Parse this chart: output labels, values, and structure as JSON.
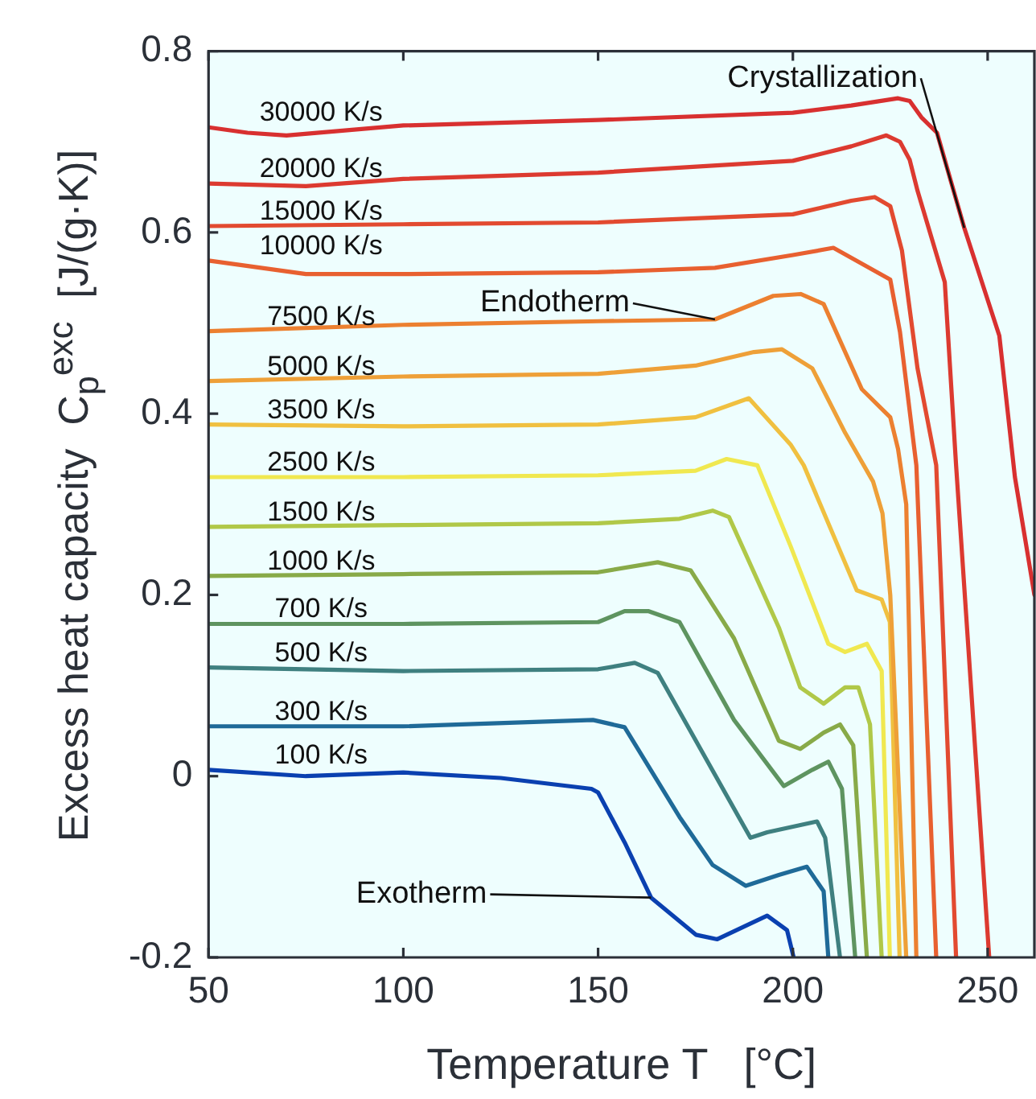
{
  "chart_data": {
    "type": "line",
    "xlabel": "Temperature T   [°C]",
    "ylabel": "Excess heat capacity  C$_{p}$$^{exc}$  [J/(g·K)]",
    "xlim": [
      50,
      262
    ],
    "ylim": [
      -0.2,
      0.8
    ],
    "xticks": [
      50,
      100,
      150,
      200,
      250
    ],
    "yticks": [
      -0.2,
      0,
      0.2,
      0.4,
      0.6,
      0.8
    ],
    "legend": false,
    "marker": "none",
    "line_style": "solid",
    "annotations": [
      {
        "text": "Crystallization",
        "x": 244,
        "y": 0.605
      },
      {
        "text": "Endotherm",
        "x": 180,
        "y": 0.504
      },
      {
        "text": "Exotherm",
        "x": 163.6,
        "y": -0.134
      }
    ],
    "series": [
      {
        "name": "30000 K/s",
        "color": "#d83030",
        "x": [
          50,
          60,
          70,
          100,
          150,
          200,
          215,
          227,
          230,
          233,
          237,
          244,
          253,
          257,
          262
        ],
        "values": [
          0.716,
          0.71,
          0.707,
          0.718,
          0.724,
          0.732,
          0.74,
          0.748,
          0.745,
          0.727,
          0.71,
          0.605,
          0.486,
          0.33,
          0.2
        ]
      },
      {
        "name": "20000 K/s",
        "color": "#dc3a30",
        "x": [
          50,
          75,
          100,
          150,
          200,
          215,
          224,
          227.5,
          230,
          232,
          239,
          241.9,
          250.4
        ],
        "values": [
          0.654,
          0.651,
          0.659,
          0.666,
          0.679,
          0.695,
          0.707,
          0.7,
          0.68,
          0.646,
          0.545,
          0.343,
          -0.2
        ]
      },
      {
        "name": "15000 K/s",
        "color": "#e24a30",
        "x": [
          50,
          100,
          150,
          200,
          215,
          221,
          225,
          228,
          232,
          236.8,
          241.9
        ],
        "values": [
          0.607,
          0.609,
          0.611,
          0.62,
          0.635,
          0.639,
          0.629,
          0.58,
          0.45,
          0.343,
          -0.2
        ]
      },
      {
        "name": "10000 K/s",
        "color": "#e86030",
        "x": [
          50,
          75,
          100,
          150,
          180,
          200,
          210.4,
          225,
          227.5,
          229.5,
          231.7,
          236.8
        ],
        "values": [
          0.569,
          0.554,
          0.554,
          0.556,
          0.561,
          0.575,
          0.583,
          0.548,
          0.49,
          0.42,
          0.343,
          -0.2
        ]
      },
      {
        "name": "7500 K/s",
        "color": "#ec8030",
        "x": [
          50,
          100,
          150,
          180,
          195,
          202,
          207.9,
          217.7,
          225,
          227,
          229.1,
          231.7
        ],
        "values": [
          0.491,
          0.498,
          0.502,
          0.504,
          0.53,
          0.532,
          0.521,
          0.427,
          0.396,
          0.361,
          0.3,
          -0.2
        ]
      },
      {
        "name": "5000 K/s",
        "color": "#eea038",
        "x": [
          50,
          100,
          150,
          175,
          190,
          197.2,
          205,
          213.4,
          220.6,
          223,
          225,
          229.1
        ],
        "values": [
          0.436,
          0.441,
          0.444,
          0.453,
          0.468,
          0.471,
          0.45,
          0.379,
          0.325,
          0.29,
          0.2,
          -0.2
        ]
      },
      {
        "name": "3500 K/s",
        "color": "#f0c040",
        "x": [
          50,
          100,
          150,
          175,
          188.7,
          199.4,
          202.8,
          216.4,
          222.8,
          224.9,
          227.4
        ],
        "values": [
          0.388,
          0.386,
          0.388,
          0.396,
          0.417,
          0.366,
          0.343,
          0.205,
          0.195,
          0.17,
          -0.2
        ]
      },
      {
        "name": "2500 K/s",
        "color": "#f0e850",
        "x": [
          50,
          100,
          150,
          175,
          183,
          190.9,
          199.4,
          209.1,
          213.4,
          219,
          222.8,
          224.9
        ],
        "values": [
          0.33,
          0.33,
          0.332,
          0.337,
          0.35,
          0.343,
          0.254,
          0.146,
          0.137,
          0.146,
          0.116,
          -0.2
        ]
      },
      {
        "name": "1500 K/s",
        "color": "#b0c848",
        "x": [
          50,
          100,
          150,
          170.9,
          179.4,
          183.6,
          196.4,
          201.9,
          207.9,
          213.4,
          216.8,
          219.8,
          222.8
        ],
        "values": [
          0.275,
          0.277,
          0.279,
          0.284,
          0.293,
          0.286,
          0.164,
          0.098,
          0.08,
          0.098,
          0.098,
          0.057,
          -0.2
        ]
      },
      {
        "name": "1000 K/s",
        "color": "#88aa48",
        "x": [
          50,
          100,
          150,
          165.3,
          173.8,
          184.9,
          196.4,
          201.9,
          207.9,
          212.1,
          215.5,
          219
        ],
        "values": [
          0.221,
          0.223,
          0.225,
          0.236,
          0.227,
          0.152,
          0.039,
          0.03,
          0.048,
          0.057,
          0.034,
          -0.2
        ]
      },
      {
        "name": "700 K/s",
        "color": "#5e9460",
        "x": [
          50,
          100,
          150,
          156.8,
          163,
          170.9,
          184.9,
          197.7,
          205,
          209.1,
          212.6,
          216
        ],
        "values": [
          0.168,
          0.168,
          0.17,
          0.182,
          0.182,
          0.17,
          0.062,
          -0.011,
          0.007,
          0.016,
          -0.014,
          -0.2
        ]
      },
      {
        "name": "500 K/s",
        "color": "#3f8080",
        "x": [
          50,
          100,
          150,
          159.4,
          165.3,
          189.1,
          193.4,
          206.2,
          208.3,
          212.1
        ],
        "values": [
          0.12,
          0.116,
          0.118,
          0.125,
          0.114,
          -0.068,
          -0.062,
          -0.05,
          -0.068,
          -0.2
        ]
      },
      {
        "name": "300 K/s",
        "color": "#1f6a98",
        "x": [
          50,
          100,
          148.7,
          156.8,
          170.9,
          179.4,
          187.9,
          196.4,
          203.6,
          207.9,
          209.1
        ],
        "values": [
          0.055,
          0.055,
          0.062,
          0.054,
          -0.045,
          -0.098,
          -0.121,
          -0.109,
          -0.1,
          -0.127,
          -0.2
        ]
      },
      {
        "name": "100 K/s",
        "color": "#0a40b0",
        "x": [
          50,
          75,
          100,
          125,
          148.3,
          150,
          156.8,
          163.6,
          175.1,
          180.6,
          193.4,
          198.5,
          200.2
        ],
        "values": [
          0.007,
          0,
          0.004,
          -0.002,
          -0.014,
          -0.018,
          -0.073,
          -0.134,
          -0.175,
          -0.18,
          -0.154,
          -0.17,
          -0.2
        ]
      }
    ]
  }
}
